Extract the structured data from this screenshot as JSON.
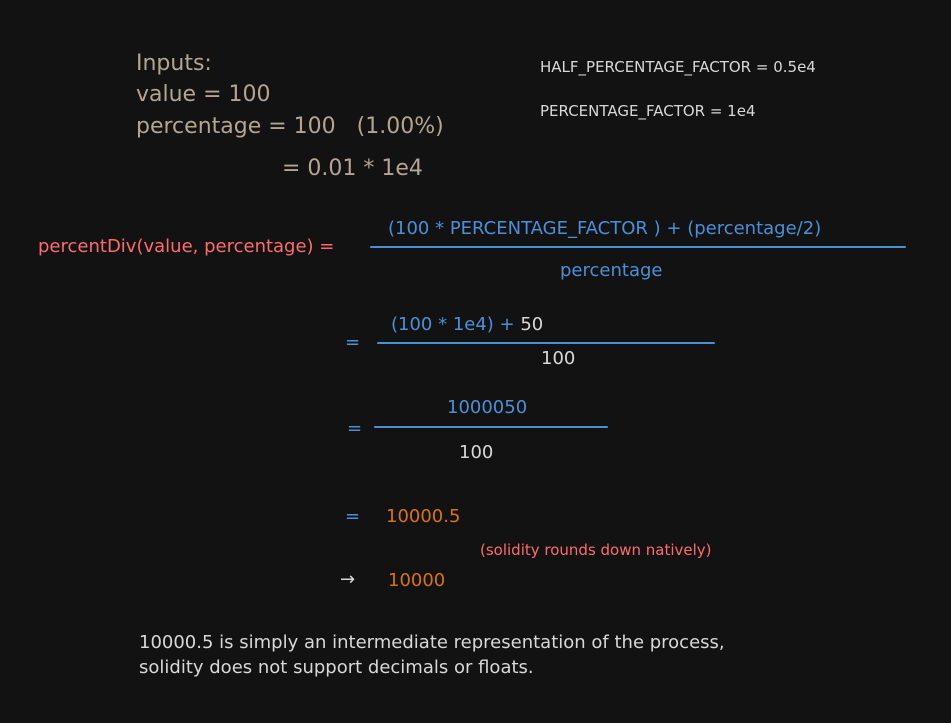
{
  "inputs": {
    "heading": "Inputs:",
    "value_line": "value = 100",
    "percentage_line": "percentage = 100   (1.00%)",
    "equiv_line": "= 0.01 * 1e4"
  },
  "constants": {
    "half_factor": "HALF_PERCENTAGE_FACTOR = 0.5e4",
    "factor": "PERCENTAGE_FACTOR = 1e4"
  },
  "formula": {
    "lhs": "percentDiv(value, percentage) =",
    "numerator": "(100 * PERCENTAGE_FACTOR ) + (percentage/2)",
    "denominator": "percentage"
  },
  "step1": {
    "eq": "=",
    "numerator_prefix": "(100 * 1e4) + ",
    "numerator_fifty": "50",
    "denominator": "100"
  },
  "step2": {
    "eq": "=",
    "numerator": "1000050",
    "denominator": "100"
  },
  "step3": {
    "eq": "=",
    "value": "10000.5",
    "note": "(solidity rounds down natively)"
  },
  "result": {
    "arrow": "→",
    "value": "10000"
  },
  "footnote": {
    "line1": "10000.5 is simply an intermediate representation of the process,",
    "line2": "solidity does not support decimals or floats."
  },
  "colors": {
    "background": "#121212",
    "beige": "#b5a490",
    "red": "#ff6b6b",
    "blue": "#4a90d9",
    "orange": "#d9730d",
    "white": "#d8d8d8"
  }
}
